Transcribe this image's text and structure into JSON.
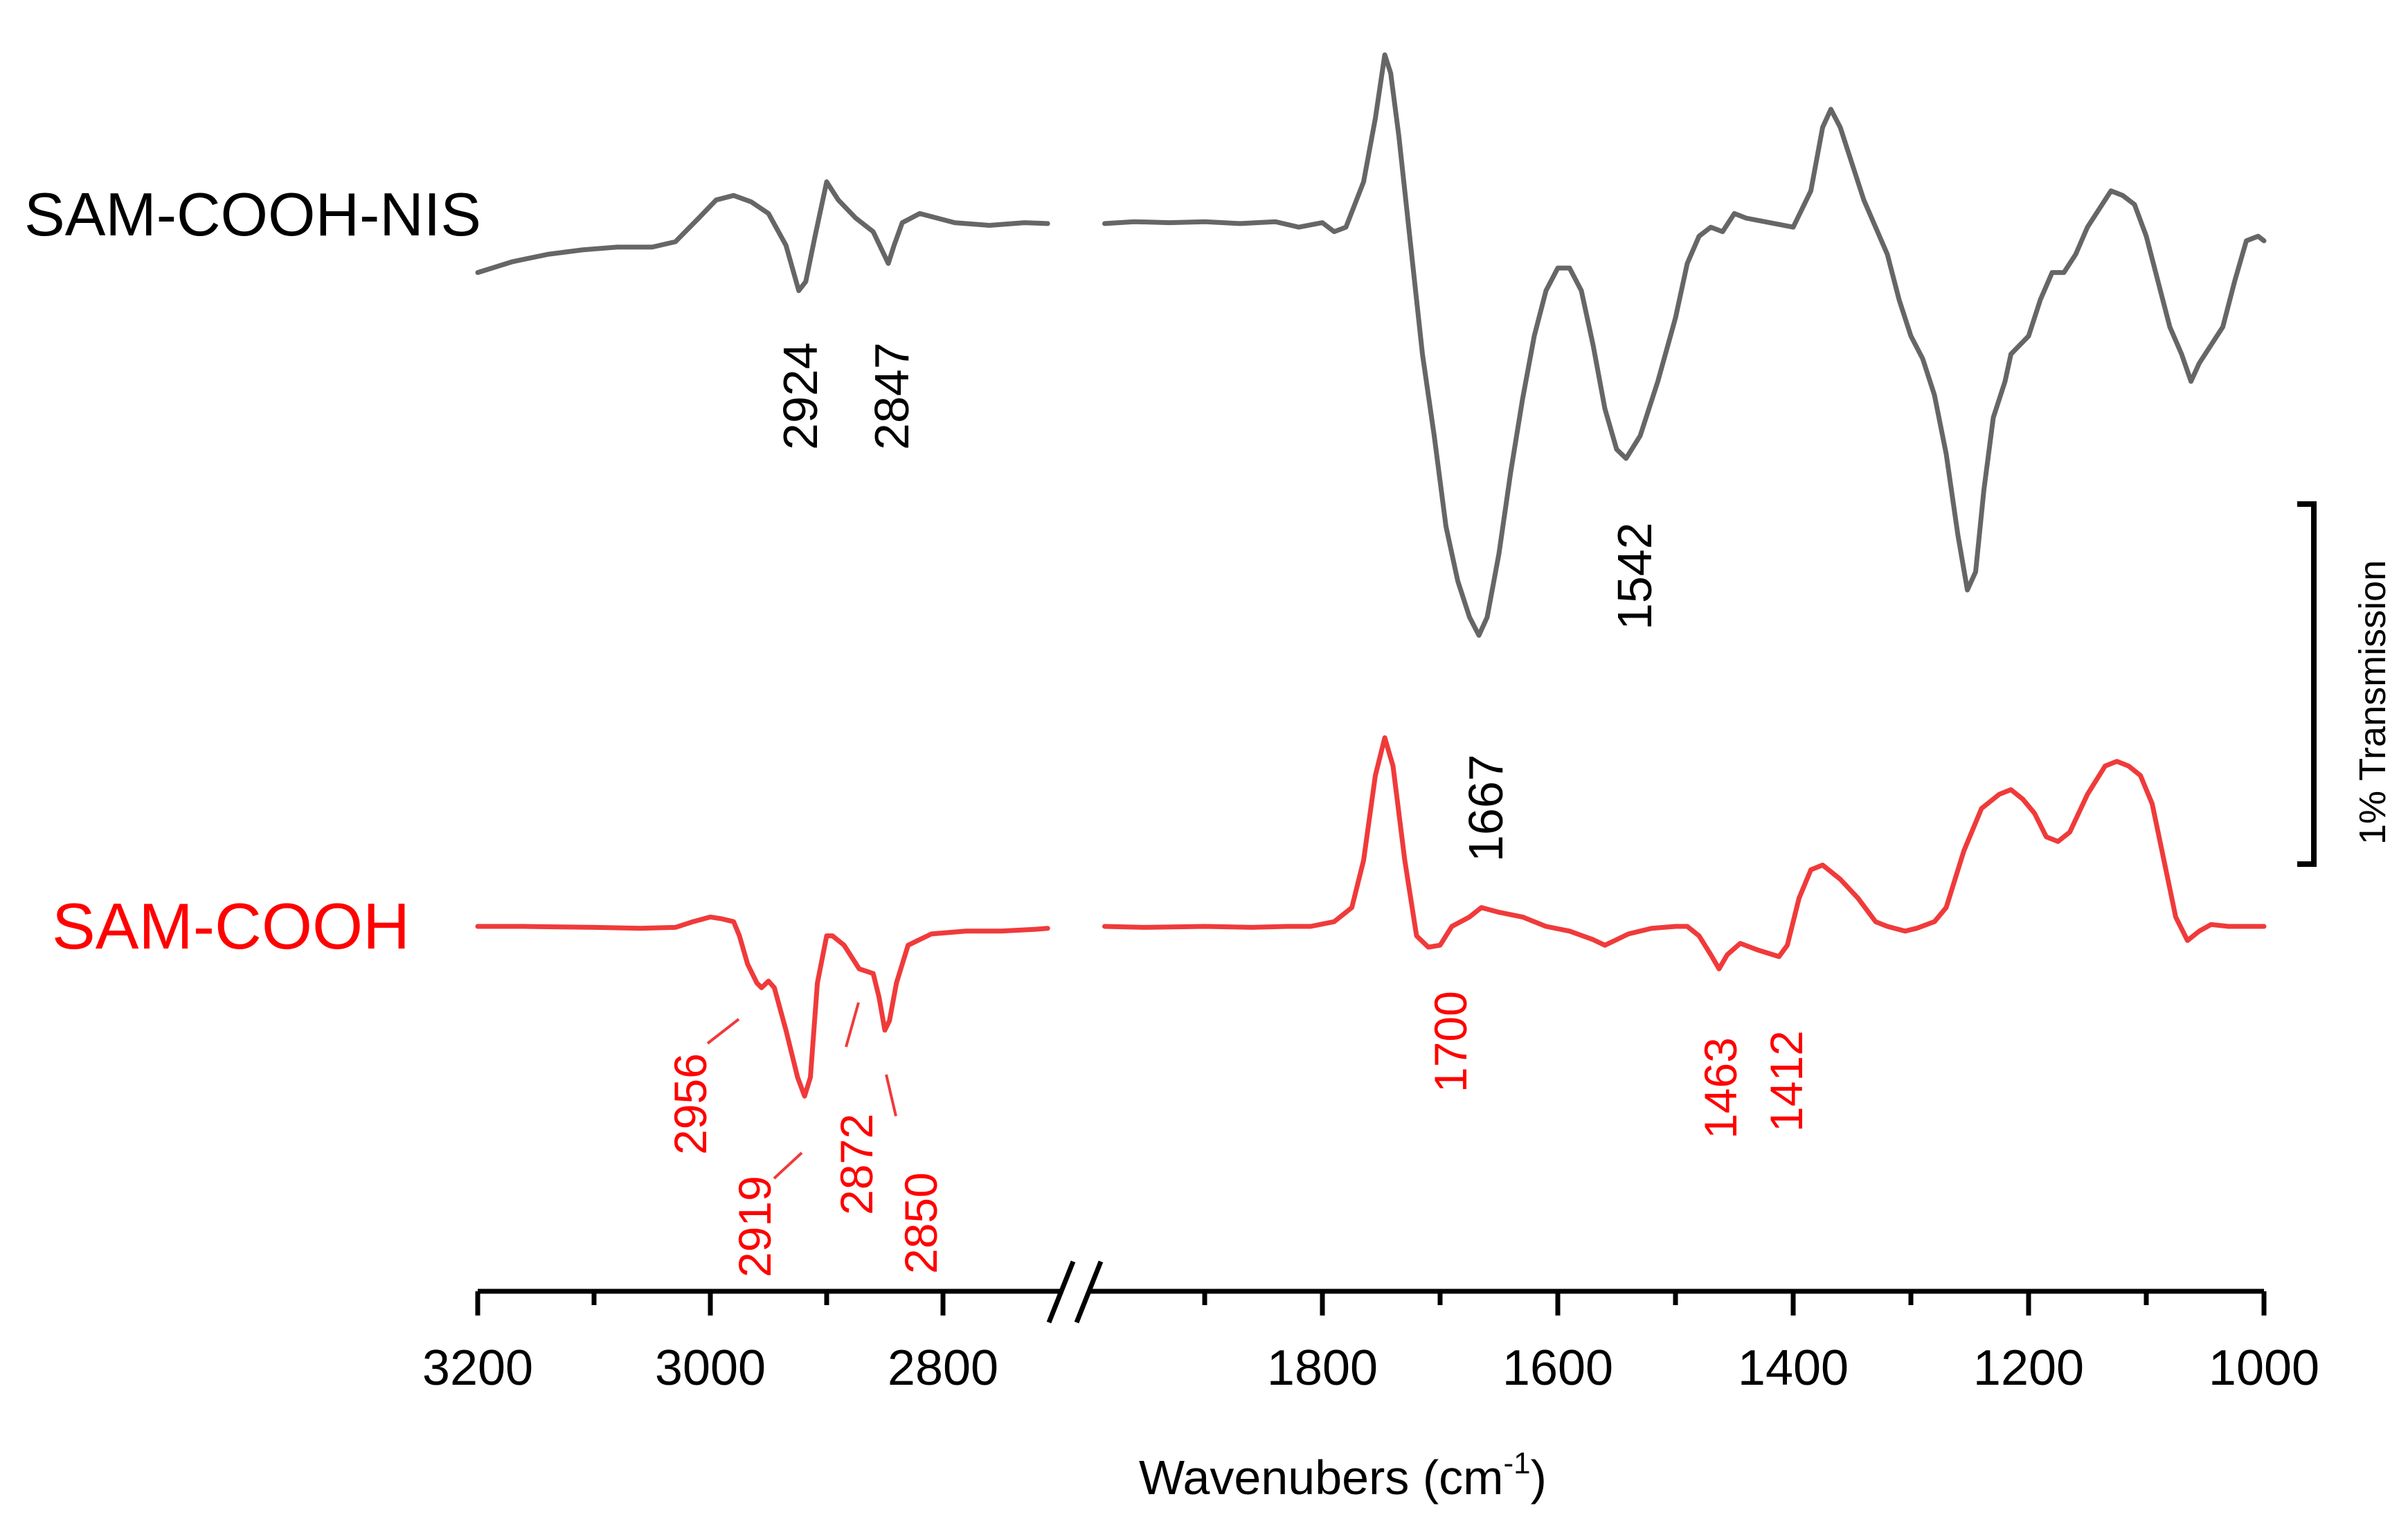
{
  "chart_data": {
    "type": "line",
    "title": "",
    "xlabel": "Wavenubers (cm",
    "xlabel_sup": "-1",
    "xlabel_close": ")",
    "ylabel": "",
    "x_axis": {
      "segments": [
        {
          "range": [
            3200,
            2700
          ],
          "ticks": [
            3200,
            3000,
            2800
          ],
          "minor_ticks": [
            3100,
            2900
          ]
        },
        {
          "range": [
            2000,
            1000
          ],
          "ticks": [
            1800,
            1600,
            1400,
            1200,
            1000
          ],
          "minor_ticks": [
            1900,
            1700,
            1500,
            1300,
            1100
          ]
        }
      ],
      "break_between": [
        2700,
        2000
      ],
      "reversed": true
    },
    "tick_labels": [
      "3200",
      "3000",
      "2800",
      "1800",
      "1600",
      "1400",
      "1200",
      "1000"
    ],
    "scale_bar": {
      "label": "1% Transmission",
      "value_percent": 1
    },
    "colors": {
      "nis": "#666666",
      "cooh": "#f03a3a",
      "black": "#000000",
      "red_text": "#ff0000"
    },
    "series": [
      {
        "name": "SAM-COOH-NIS",
        "color": "#666666",
        "baseline": 0.25,
        "points": [
          [
            3200,
            0.6
          ],
          [
            3170,
            0.48
          ],
          [
            3140,
            0.4
          ],
          [
            3110,
            0.35
          ],
          [
            3080,
            0.32
          ],
          [
            3050,
            0.32
          ],
          [
            3030,
            0.26
          ],
          [
            3010,
            0.0
          ],
          [
            2995,
            -0.2
          ],
          [
            2980,
            -0.25
          ],
          [
            2965,
            -0.18
          ],
          [
            2950,
            -0.05
          ],
          [
            2935,
            0.3
          ],
          [
            2924,
            0.8
          ],
          [
            2918,
            0.7
          ],
          [
            2910,
            0.2
          ],
          [
            2900,
            -0.4
          ],
          [
            2890,
            -0.2
          ],
          [
            2875,
            0.0
          ],
          [
            2860,
            0.15
          ],
          [
            2847,
            0.5
          ],
          [
            2842,
            0.3
          ],
          [
            2835,
            0.05
          ],
          [
            2820,
            -0.05
          ],
          [
            2790,
            0.05
          ],
          [
            2760,
            0.08
          ],
          [
            2730,
            0.05
          ],
          [
            2710,
            0.06
          ],
          [
            1985,
            0.06
          ],
          [
            1960,
            0.04
          ],
          [
            1930,
            0.05
          ],
          [
            1900,
            0.04
          ],
          [
            1870,
            0.06
          ],
          [
            1840,
            0.04
          ],
          [
            1820,
            0.1
          ],
          [
            1800,
            0.05
          ],
          [
            1790,
            0.15
          ],
          [
            1780,
            0.1
          ],
          [
            1765,
            -0.4
          ],
          [
            1755,
            -1.1
          ],
          [
            1747,
            -1.8
          ],
          [
            1742,
            -1.6
          ],
          [
            1735,
            -0.9
          ],
          [
            1725,
            0.3
          ],
          [
            1715,
            1.5
          ],
          [
            1705,
            2.4
          ],
          [
            1695,
            3.4
          ],
          [
            1685,
            4.0
          ],
          [
            1675,
            4.4
          ],
          [
            1667,
            4.6
          ],
          [
            1660,
            4.4
          ],
          [
            1650,
            3.7
          ],
          [
            1640,
            2.8
          ],
          [
            1630,
            2.0
          ],
          [
            1620,
            1.3
          ],
          [
            1610,
            0.8
          ],
          [
            1600,
            0.55
          ],
          [
            1590,
            0.55
          ],
          [
            1580,
            0.8
          ],
          [
            1570,
            1.4
          ],
          [
            1560,
            2.1
          ],
          [
            1550,
            2.55
          ],
          [
            1542,
            2.65
          ],
          [
            1530,
            2.4
          ],
          [
            1515,
            1.8
          ],
          [
            1500,
            1.1
          ],
          [
            1490,
            0.5
          ],
          [
            1480,
            0.2
          ],
          [
            1470,
            0.1
          ],
          [
            1460,
            0.15
          ],
          [
            1450,
            -0.05
          ],
          [
            1440,
            0.0
          ],
          [
            1420,
            0.05
          ],
          [
            1400,
            0.1
          ],
          [
            1385,
            -0.3
          ],
          [
            1375,
            -1.0
          ],
          [
            1368,
            -1.2
          ],
          [
            1360,
            -1.0
          ],
          [
            1350,
            -0.6
          ],
          [
            1340,
            -0.2
          ],
          [
            1330,
            0.1
          ],
          [
            1320,
            0.4
          ],
          [
            1310,
            0.9
          ],
          [
            1300,
            1.3
          ],
          [
            1290,
            1.55
          ],
          [
            1280,
            1.95
          ],
          [
            1270,
            2.6
          ],
          [
            1260,
            3.5
          ],
          [
            1252,
            4.1
          ],
          [
            1245,
            3.9
          ],
          [
            1238,
            3.0
          ],
          [
            1230,
            2.2
          ],
          [
            1220,
            1.8
          ],
          [
            1215,
            1.5
          ],
          [
            1200,
            1.3
          ],
          [
            1190,
            0.9
          ],
          [
            1180,
            0.6
          ],
          [
            1170,
            0.6
          ],
          [
            1160,
            0.4
          ],
          [
            1150,
            0.1
          ],
          [
            1140,
            -0.1
          ],
          [
            1130,
            -0.3
          ],
          [
            1120,
            -0.25
          ],
          [
            1110,
            -0.15
          ],
          [
            1100,
            0.2
          ],
          [
            1090,
            0.7
          ],
          [
            1080,
            1.2
          ],
          [
            1070,
            1.5
          ],
          [
            1062,
            1.8
          ],
          [
            1055,
            1.6
          ],
          [
            1045,
            1.4
          ],
          [
            1035,
            1.2
          ],
          [
            1025,
            0.7
          ],
          [
            1015,
            0.25
          ],
          [
            1005,
            0.2
          ],
          [
            1000,
            0.25
          ]
        ]
      },
      {
        "name": "SAM-COOH",
        "color": "#f03a3a",
        "baseline": 0.0,
        "points": [
          [
            3200,
            0.0
          ],
          [
            3160,
            0.0
          ],
          [
            3100,
            0.01
          ],
          [
            3060,
            0.02
          ],
          [
            3030,
            0.01
          ],
          [
            3015,
            -0.05
          ],
          [
            3000,
            -0.1
          ],
          [
            2990,
            -0.08
          ],
          [
            2980,
            -0.05
          ],
          [
            2975,
            0.1
          ],
          [
            2968,
            0.4
          ],
          [
            2960,
            0.6
          ],
          [
            2956,
            0.65
          ],
          [
            2950,
            0.58
          ],
          [
            2945,
            0.65
          ],
          [
            2935,
            1.1
          ],
          [
            2925,
            1.6
          ],
          [
            2919,
            1.8
          ],
          [
            2914,
            1.6
          ],
          [
            2908,
            0.6
          ],
          [
            2900,
            0.1
          ],
          [
            2895,
            0.1
          ],
          [
            2885,
            0.2
          ],
          [
            2872,
            0.45
          ],
          [
            2860,
            0.5
          ],
          [
            2855,
            0.75
          ],
          [
            2850,
            1.1
          ],
          [
            2846,
            1.0
          ],
          [
            2840,
            0.6
          ],
          [
            2830,
            0.2
          ],
          [
            2810,
            0.08
          ],
          [
            2780,
            0.05
          ],
          [
            2750,
            0.05
          ],
          [
            2720,
            0.03
          ],
          [
            2710,
            0.02
          ],
          [
            1985,
            0.0
          ],
          [
            1950,
            0.01
          ],
          [
            1900,
            0.0
          ],
          [
            1860,
            0.01
          ],
          [
            1830,
            0.0
          ],
          [
            1810,
            0.0
          ],
          [
            1790,
            -0.05
          ],
          [
            1775,
            -0.2
          ],
          [
            1765,
            -0.7
          ],
          [
            1755,
            -1.6
          ],
          [
            1747,
            -2.0
          ],
          [
            1740,
            -1.7
          ],
          [
            1730,
            -0.7
          ],
          [
            1720,
            0.1
          ],
          [
            1710,
            0.22
          ],
          [
            1700,
            0.2
          ],
          [
            1690,
            0.0
          ],
          [
            1675,
            -0.1
          ],
          [
            1665,
            -0.2
          ],
          [
            1650,
            -0.15
          ],
          [
            1630,
            -0.1
          ],
          [
            1610,
            0.0
          ],
          [
            1590,
            0.05
          ],
          [
            1570,
            0.14
          ],
          [
            1560,
            0.2
          ],
          [
            1550,
            0.14
          ],
          [
            1540,
            0.08
          ],
          [
            1520,
            0.02
          ],
          [
            1500,
            0.0
          ],
          [
            1490,
            0.0
          ],
          [
            1480,
            0.1
          ],
          [
            1470,
            0.3
          ],
          [
            1463,
            0.45
          ],
          [
            1456,
            0.3
          ],
          [
            1445,
            0.18
          ],
          [
            1430,
            0.25
          ],
          [
            1412,
            0.32
          ],
          [
            1405,
            0.2
          ],
          [
            1395,
            -0.3
          ],
          [
            1385,
            -0.6
          ],
          [
            1375,
            -0.65
          ],
          [
            1360,
            -0.5
          ],
          [
            1345,
            -0.3
          ],
          [
            1330,
            -0.05
          ],
          [
            1320,
            0.0
          ],
          [
            1305,
            0.05
          ],
          [
            1295,
            0.02
          ],
          [
            1280,
            -0.05
          ],
          [
            1270,
            -0.2
          ],
          [
            1255,
            -0.8
          ],
          [
            1240,
            -1.25
          ],
          [
            1225,
            -1.4
          ],
          [
            1215,
            -1.45
          ],
          [
            1205,
            -1.35
          ],
          [
            1195,
            -1.2
          ],
          [
            1185,
            -0.95
          ],
          [
            1175,
            -0.9
          ],
          [
            1165,
            -1.0
          ],
          [
            1150,
            -1.4
          ],
          [
            1135,
            -1.7
          ],
          [
            1125,
            -1.75
          ],
          [
            1115,
            -1.7
          ],
          [
            1105,
            -1.6
          ],
          [
            1095,
            -1.3
          ],
          [
            1085,
            -0.7
          ],
          [
            1075,
            -0.1
          ],
          [
            1065,
            0.15
          ],
          [
            1055,
            0.05
          ],
          [
            1045,
            -0.02
          ],
          [
            1030,
            0.0
          ],
          [
            1015,
            0.0
          ],
          [
            1000,
            0.0
          ]
        ]
      }
    ],
    "annotations": {
      "nis": [
        {
          "label": "2924",
          "x": 2924
        },
        {
          "label": "2847",
          "x": 2847
        },
        {
          "label": "1667",
          "x": 1667
        },
        {
          "label": "1542",
          "x": 1542
        }
      ],
      "cooh": [
        {
          "label": "2956",
          "x": 2956
        },
        {
          "label": "2919",
          "x": 2919
        },
        {
          "label": "2872",
          "x": 2872
        },
        {
          "label": "2850",
          "x": 2850
        },
        {
          "label": "1700",
          "x": 1700
        },
        {
          "label": "1463",
          "x": 1463
        },
        {
          "label": "1412",
          "x": 1412
        }
      ]
    }
  }
}
